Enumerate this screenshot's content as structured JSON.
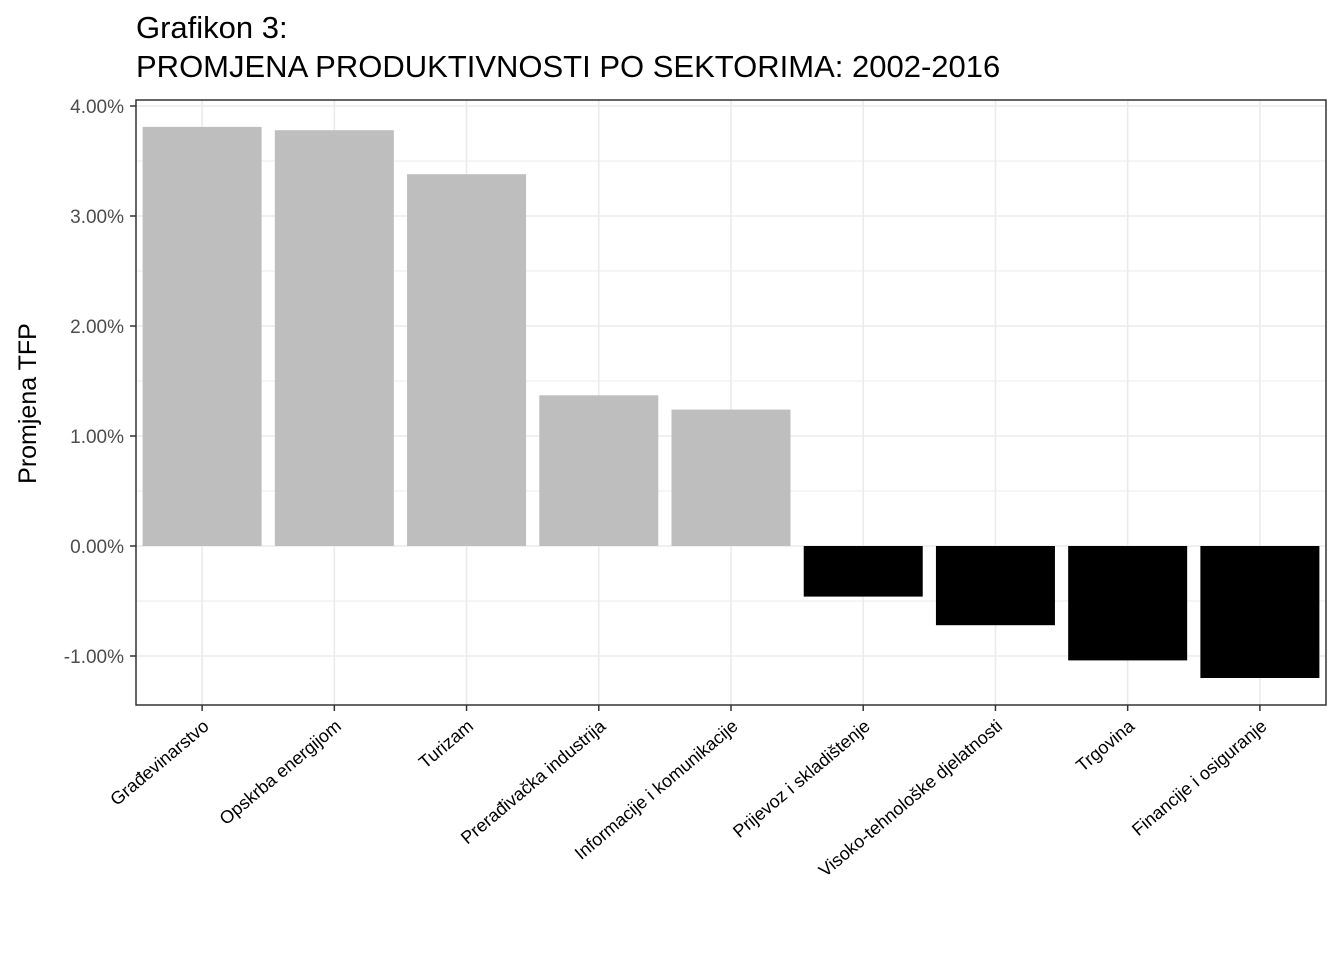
{
  "chart_data": {
    "type": "bar",
    "title_line1": "Grafikon 3:",
    "title_line2": "PROMJENA PRODUKTIVNOSTI PO SEKTORIMA: 2002-2016",
    "xlabel": "",
    "ylabel": "Promjena TFP",
    "categories": [
      "Građevinarstvo",
      "Opskrba energijom",
      "Turizam",
      "Prerađivačka industrija",
      "Informacije i komunikacije",
      "Prijevoz i skladištenje",
      "Visoko-tehnološke djelatnosti",
      "Trgovina",
      "Financije i osiguranje"
    ],
    "values": [
      3.81,
      3.78,
      3.38,
      1.37,
      1.24,
      -0.46,
      -0.72,
      -1.04,
      -1.2
    ],
    "value_unit": "%",
    "ylim": [
      -1.43,
      4.1
    ],
    "yticks": [
      -1,
      0,
      1,
      2,
      3,
      4
    ],
    "ytick_labels": [
      "-1.00%",
      "0.00%",
      "1.00%",
      "2.00%",
      "3.00%",
      "4.00%"
    ],
    "grid": true,
    "theme": "bw",
    "colors": {
      "positive": "#bebebe",
      "negative": "#000000",
      "grid": "#ebebeb",
      "border": "#333333"
    },
    "legend": "none"
  }
}
